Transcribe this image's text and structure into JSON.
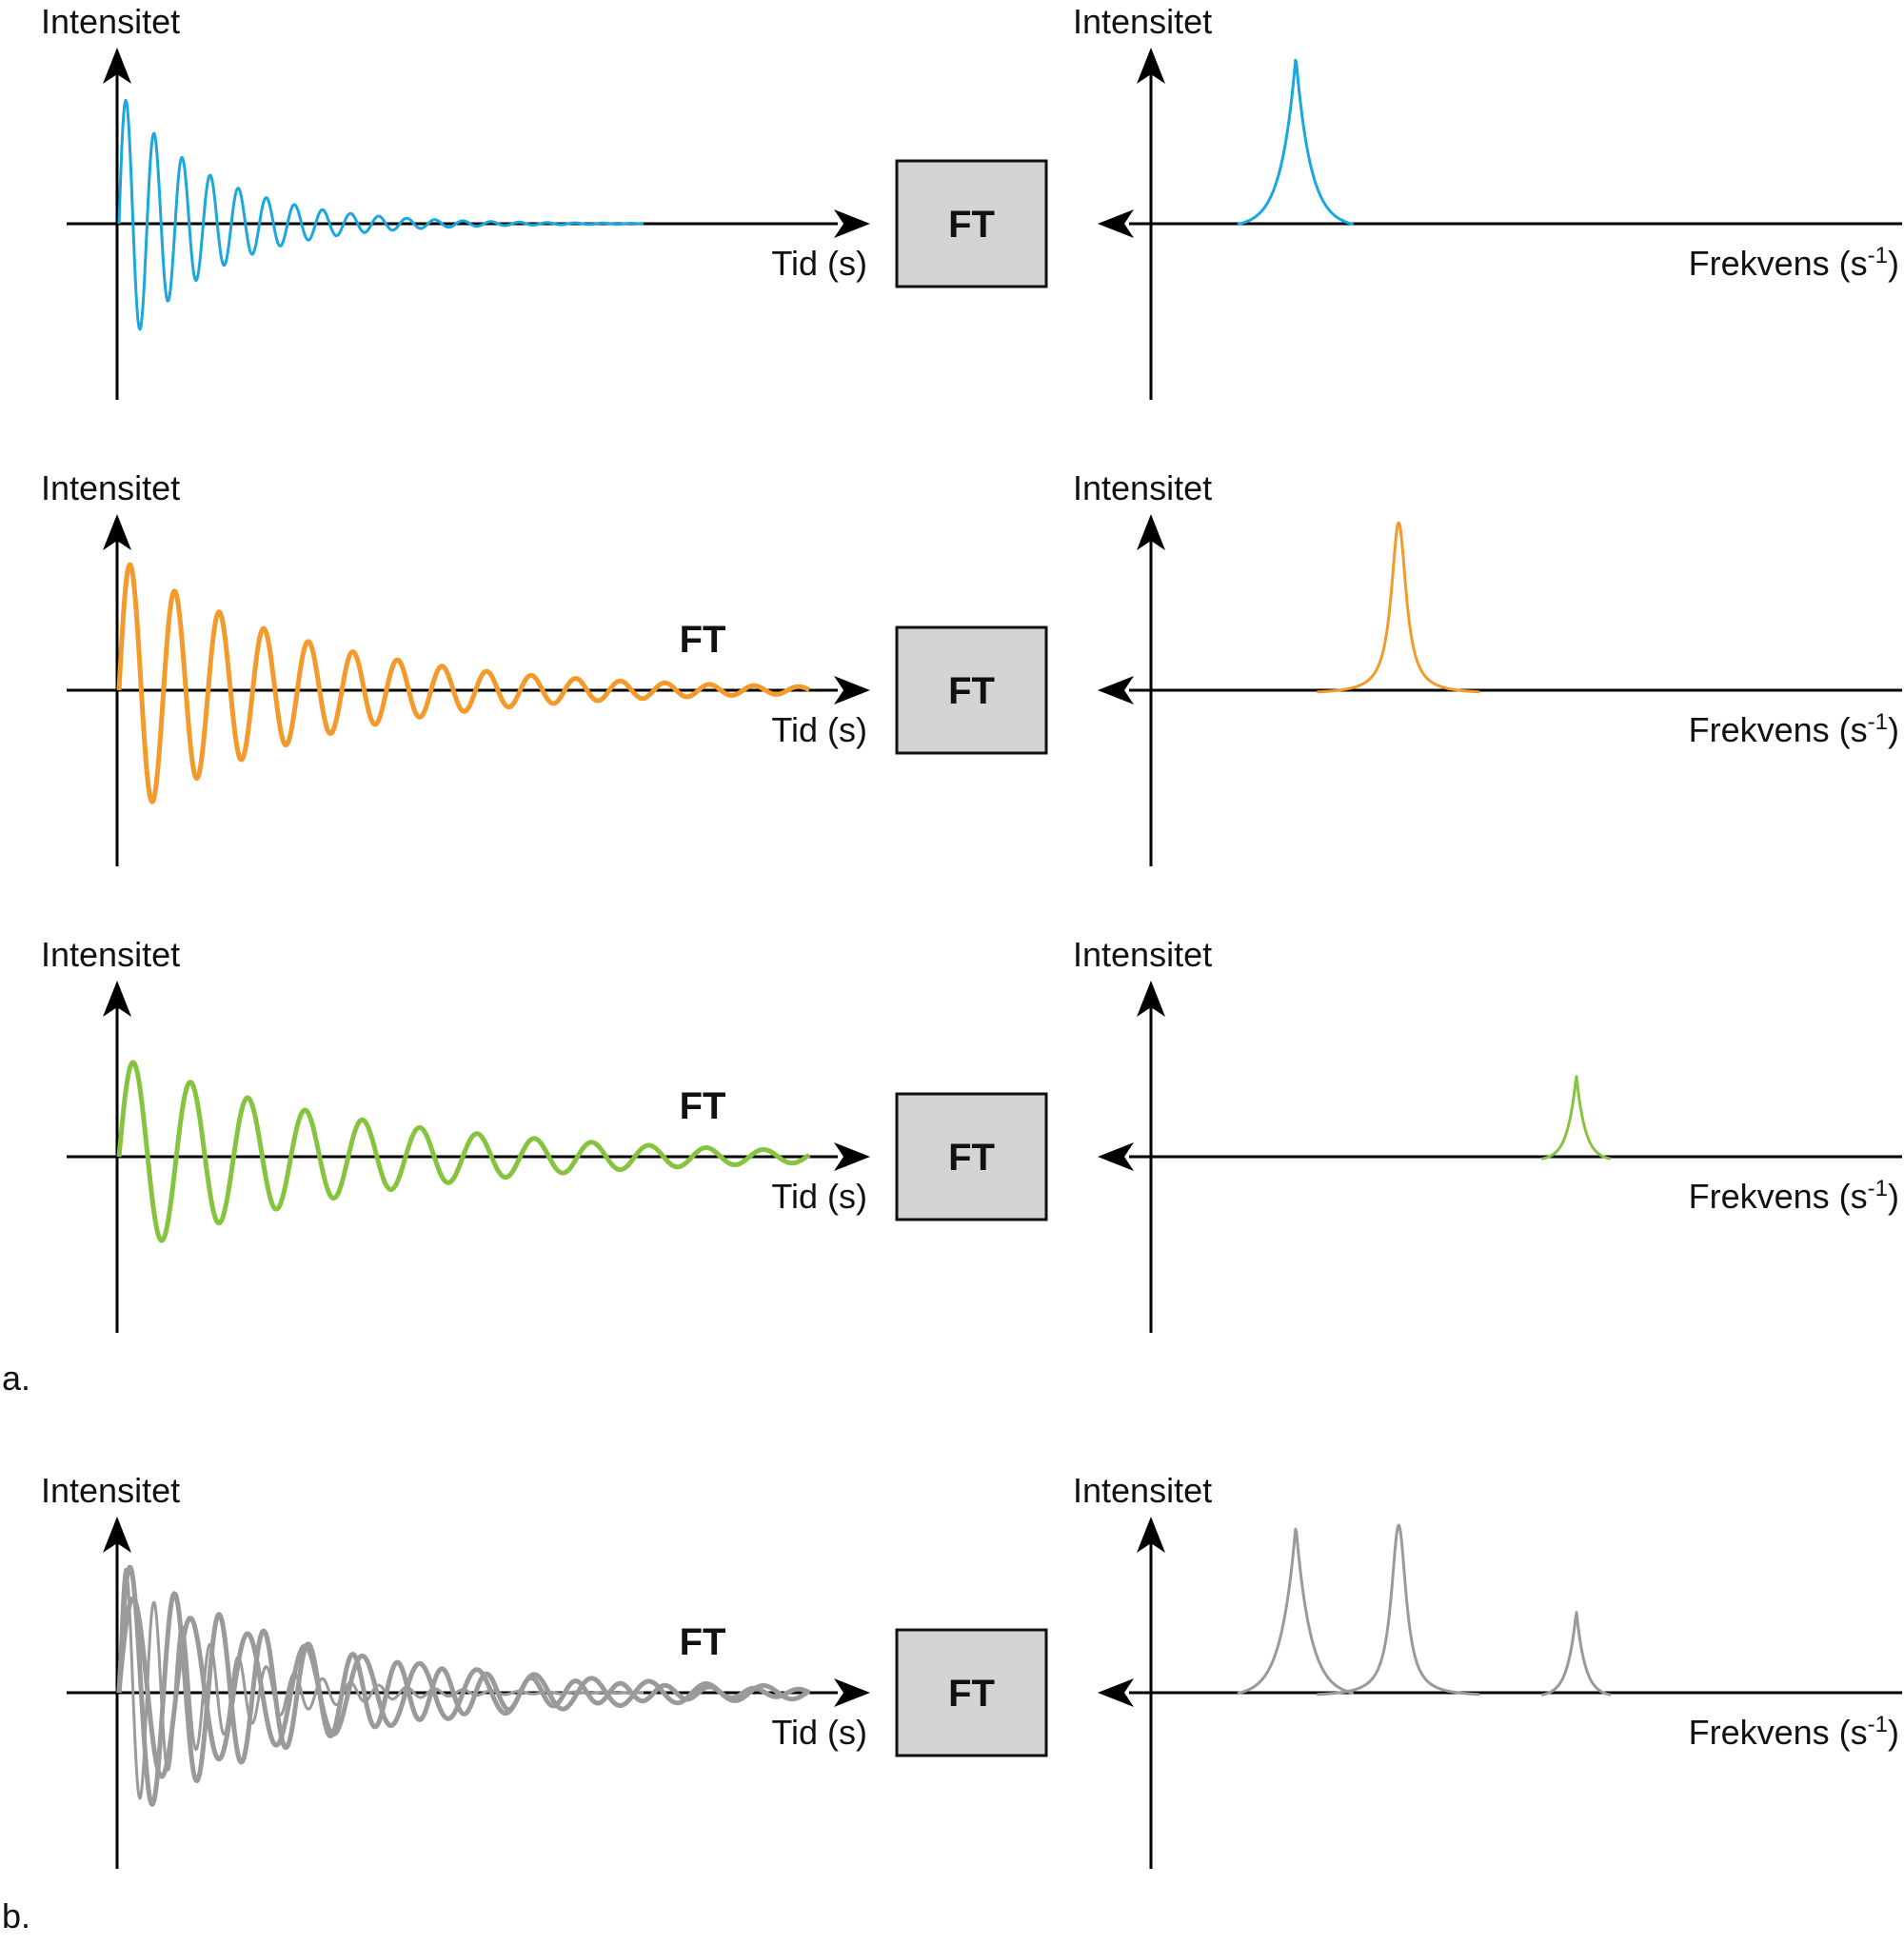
{
  "rows": [
    {
      "id": "row1",
      "time_axis": {
        "ylabel": "Intensitet",
        "xlabel": "Tid (s)"
      },
      "ft_box_label": "FT",
      "ft_float_label": "",
      "freq_axis": {
        "ylabel": "Intensitet",
        "xlabel_main": "Frekvens (s",
        "xlabel_sup": "-1",
        "xlabel_close": ")"
      },
      "signals": [
        {
          "color": "#1aa7e0",
          "frequency": 1.0,
          "decay": 1.0,
          "amplitude": 1.0,
          "thickness": "thin"
        }
      ],
      "peaks": [
        {
          "color": "#1aa7e0",
          "position": 0.31,
          "height": 1.0,
          "shape": "cusp",
          "width": 0.1
        }
      ]
    },
    {
      "id": "row2",
      "time_axis": {
        "ylabel": "Intensitet",
        "xlabel": "Tid (s)"
      },
      "ft_box_label": "FT",
      "ft_float_label": "FT",
      "freq_axis": {
        "ylabel": "Intensitet",
        "xlabel_main": "Frekvens (s",
        "xlabel_sup": "-1",
        "xlabel_close": ")"
      },
      "signals": [
        {
          "color": "#f39a2b",
          "frequency": 0.63,
          "decay": 0.48,
          "amplitude": 1.0,
          "thickness": "medium"
        }
      ],
      "peaks": [
        {
          "color": "#f39a2b",
          "position": 0.53,
          "height": 1.0,
          "shape": "lorentz",
          "width": 0.035
        }
      ]
    },
    {
      "id": "row3",
      "time_axis": {
        "ylabel": "Intensitet",
        "xlabel": "Tid (s)"
      },
      "ft_box_label": "FT",
      "ft_float_label": "FT",
      "freq_axis": {
        "ylabel": "Intensitet",
        "xlabel_main": "Frekvens (s",
        "xlabel_sup": "-1",
        "xlabel_close": ")"
      },
      "signals": [
        {
          "color": "#86c440",
          "frequency": 0.49,
          "decay": 0.37,
          "amplitude": 0.75,
          "thickness": "medium"
        }
      ],
      "peaks": [
        {
          "color": "#86c440",
          "position": 0.91,
          "height": 0.5,
          "shape": "cusp",
          "width": 0.06
        }
      ]
    },
    {
      "id": "row4",
      "time_axis": {
        "ylabel": "Intensitet",
        "xlabel": "Tid (s)"
      },
      "ft_box_label": "FT",
      "ft_float_label": "FT",
      "freq_axis": {
        "ylabel": "Intensitet",
        "xlabel_main": "Frekvens (s",
        "xlabel_sup": "-1",
        "xlabel_close": ")"
      },
      "signals": [
        {
          "color": "#9a9a9a",
          "frequency": 1.0,
          "decay": 1.0,
          "amplitude": 1.0,
          "thickness": "thin"
        },
        {
          "color": "#9a9a9a",
          "frequency": 0.63,
          "decay": 0.48,
          "amplitude": 1.0,
          "thickness": "medium"
        },
        {
          "color": "#9a9a9a",
          "frequency": 0.49,
          "decay": 0.37,
          "amplitude": 0.75,
          "thickness": "medium"
        }
      ],
      "peaks": [
        {
          "color": "#9a9a9a",
          "position": 0.31,
          "height": 1.0,
          "shape": "cusp",
          "width": 0.1
        },
        {
          "color": "#9a9a9a",
          "position": 0.53,
          "height": 1.0,
          "shape": "lorentz",
          "width": 0.035
        },
        {
          "color": "#9a9a9a",
          "position": 0.91,
          "height": 0.5,
          "shape": "cusp",
          "width": 0.06
        }
      ]
    }
  ],
  "panel_labels": {
    "a": "a.",
    "b": "b."
  },
  "colors": {
    "axis": "#000000",
    "ft_box_fill": "#d4d4d6",
    "ft_box_stroke": "#111111"
  }
}
